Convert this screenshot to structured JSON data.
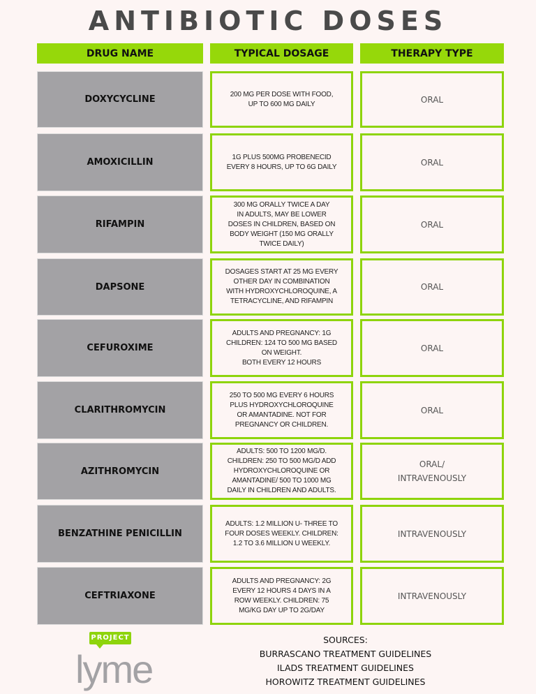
{
  "title": "ANTIBIOTIC DOSES",
  "headers": [
    "DRUG NAME",
    "TYPICAL DOSAGE",
    "THERAPY TYPE"
  ],
  "colors": {
    "accent_green": "#96d80a",
    "drug_cell_gray": "#a3a2a5",
    "background": "#fdf5f4"
  },
  "rows": [
    {
      "drug": "DOXYCYCLINE",
      "dosage": "200 MG PER DOSE WITH FOOD,\nUP TO 600 MG DAILY",
      "therapy": "ORAL"
    },
    {
      "drug": "AMOXICILLIN",
      "dosage": "1G PLUS 500MG PROBENECID\nEVERY 8 HOURS,  UP TO 6G DAILY",
      "therapy": "ORAL"
    },
    {
      "drug": "RIFAMPIN",
      "dosage": "300 MG ORALLY TWICE A DAY\nIN ADULTS, MAY BE LOWER\nDOSES IN CHILDREN, BASED ON\nBODY WEIGHT (150 MG ORALLY\nTWICE DAILY)",
      "therapy": "ORAL"
    },
    {
      "drug": "DAPSONE",
      "dosage": "DOSAGES START AT 25 MG EVERY\nOTHER DAY IN COMBINATION\nWITH HYDROXYCHLOROQUINE, A\nTETRACYCLINE, AND RIFAMPIN",
      "therapy": "ORAL"
    },
    {
      "drug": "CEFUROXIME",
      "dosage": "ADULTS AND PREGNANCY: 1G\nCHILDREN: 124 TO 500 MG BASED\nON WEIGHT.\nBOTH EVERY 12 HOURS",
      "therapy": "ORAL"
    },
    {
      "drug": "CLARITHROMYCIN",
      "dosage": "250 TO 500 MG EVERY 6 HOURS\nPLUS HYDROXYCHLOROQUINE\nOR AMANTADINE. NOT FOR\nPREGNANCY OR CHILDREN.",
      "therapy": "ORAL"
    },
    {
      "drug": "AZITHROMYCIN",
      "dosage": "ADULTS: 500 TO 1200 MG/D.\nCHILDREN: 250 TO 500 MG/D ADD\nHYDROXYCHLOROQUINE OR\nAMANTADINE/ 500 TO 1000 MG\nDAILY IN CHILDREN AND ADULTS.",
      "therapy": "ORAL/\nINTRAVENOUSLY"
    },
    {
      "drug": "BENZATHINE PENICILLIN",
      "dosage": "ADULTS:  1.2 MILLION U- THREE TO\nFOUR DOSES WEEKLY.  CHILDREN:\n1.2 TO 3.6 MILLION U WEEKLY.",
      "therapy": "INTRAVENOUSLY"
    },
    {
      "drug": "CEFTRIAXONE",
      "dosage": "ADULTS AND PREGNANCY: 2G\nEVERY 12 HOURS 4 DAYS IN A\nROW WEEKLY. CHILDREN:  75\nMG/KG DAY UP TO 2G/DAY",
      "therapy": "INTRAVENOUSLY"
    }
  ],
  "logo": {
    "tag": "PROJECT",
    "word": "lyme"
  },
  "sources": {
    "heading": "SOURCES:",
    "items": [
      "BURRASCANO TREATMENT GUIDELINES",
      "ILADS TREATMENT GUIDELINES",
      "HOROWITZ TREATMENT GUIDELINES"
    ]
  }
}
